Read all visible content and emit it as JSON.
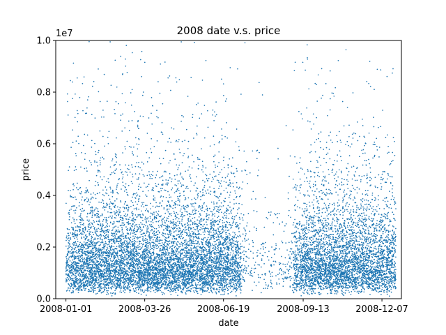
{
  "chart_data": {
    "type": "scatter",
    "title": "2008 date v.s. price",
    "xlabel": "date",
    "ylabel": "price",
    "y_offset_text": "1e7",
    "x_range": [
      "2007-12-21",
      "2008-12-28"
    ],
    "ylim": [
      0,
      10000000
    ],
    "x_ticks": [
      {
        "value": "2008-01-01",
        "label": "2008-01-01"
      },
      {
        "value": "2008-03-26",
        "label": "2008-03-26"
      },
      {
        "value": "2008-06-19",
        "label": "2008-06-19"
      },
      {
        "value": "2008-09-13",
        "label": "2008-09-13"
      },
      {
        "value": "2008-12-07",
        "label": "2008-12-07"
      }
    ],
    "y_ticks": [
      {
        "value": 0,
        "label": "0.0"
      },
      {
        "value": 2000000,
        "label": "0.2"
      },
      {
        "value": 4000000,
        "label": "0.4"
      },
      {
        "value": 6000000,
        "label": "0.6"
      },
      {
        "value": 8000000,
        "label": "0.8"
      },
      {
        "value": 10000000,
        "label": "1.0"
      }
    ],
    "grid": false,
    "point_color": "#1f77b4",
    "density_profile": {
      "description": "approximate weekly point density; roughly 20000 points, median price near 1.5e6, sparse tail up to 1e7",
      "week_start": "2008-01-01",
      "relative_density": [
        0.6,
        0.9,
        0.9,
        1.0,
        1.0,
        1.0,
        1.0,
        1.0,
        1.0,
        1.0,
        1.0,
        1.0,
        1.0,
        1.0,
        1.0,
        1.0,
        1.0,
        1.0,
        1.0,
        1.0,
        1.0,
        1.0,
        1.0,
        1.0,
        1.0,
        0.8,
        0.8,
        0.2,
        0.1,
        0.1,
        0.1,
        0.1,
        0.1,
        0.1,
        0.15,
        0.6,
        0.9,
        1.0,
        1.0,
        1.0,
        1.0,
        1.0,
        1.0,
        0.95,
        0.95,
        0.95,
        0.95,
        0.85,
        0.85,
        0.85,
        0.8,
        0.6
      ]
    }
  }
}
